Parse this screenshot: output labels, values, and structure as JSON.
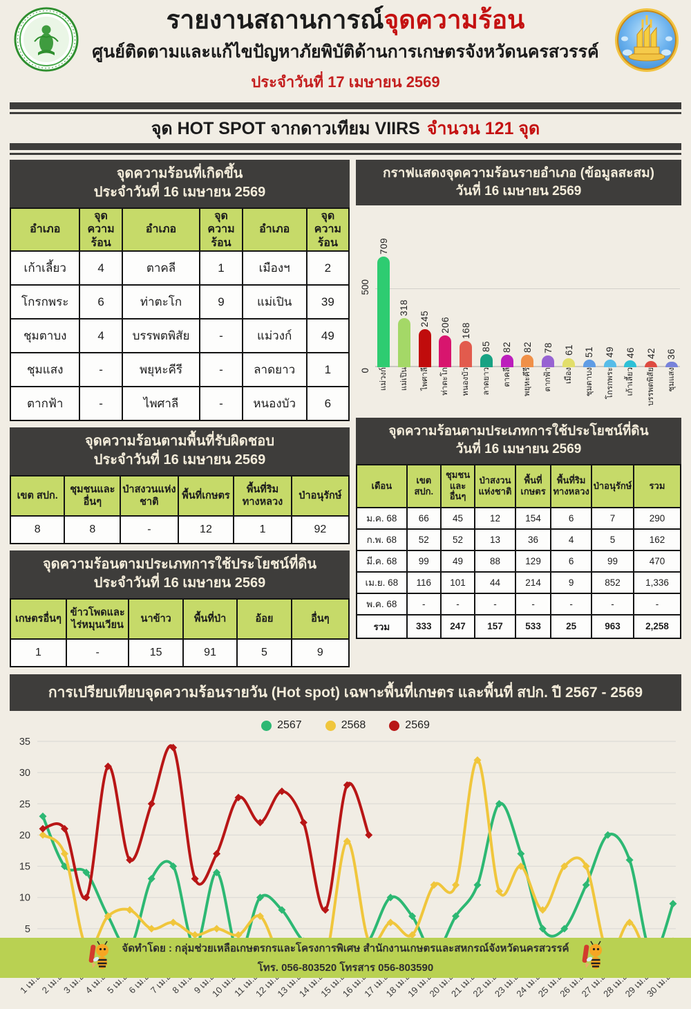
{
  "header": {
    "title_prefix": "รายงานสถานการณ์",
    "title_highlight": "จุดความร้อน",
    "subtitle": "ศูนย์ติดตามและแก้ไขปัญหาภัยพิบัติด้านการเกษตรจังหวัดนครสวรรค์",
    "date_line": "ประจำวันที่ 17 เมษายน 2569",
    "left_logo": "ministry-of-agriculture-and-cooperatives-seal",
    "right_logo": "nakhon-sawan-province-seal"
  },
  "hotspot_banner": {
    "text_black": "จุด HOT SPOT จากดาวเทียม VIIRS",
    "text_red": "จำนวน 121 จุด"
  },
  "daily_table": {
    "title": "จุดความร้อนที่เกิดขึ้น",
    "subtitle": "ประจำวันที่ 16 เมษายน 2569",
    "headers": [
      "อำเภอ",
      "จุดความ\nร้อน",
      "อำเภอ",
      "จุดความ\nร้อน",
      "อำเภอ",
      "จุดความ\nร้อน"
    ],
    "rows": [
      [
        "เก้าเลี้ยว",
        "4",
        "ตาคลี",
        "1",
        "เมืองฯ",
        "2"
      ],
      [
        "โกรกพระ",
        "6",
        "ท่าตะโก",
        "9",
        "แม่เปิน",
        "39"
      ],
      [
        "ชุมตาบง",
        "4",
        "บรรพตพิสัย",
        "-",
        "แม่วงก์",
        "49"
      ],
      [
        "ชุมแสง",
        "-",
        "พยุหะคีรี",
        "-",
        "ลาดยาว",
        "1"
      ],
      [
        "ตากฟ้า",
        "-",
        "ไพศาลี",
        "-",
        "หนองบัว",
        "6"
      ]
    ]
  },
  "responsible_area_table": {
    "title": "จุดความร้อนตามพื้นที่รับผิดชอบ",
    "subtitle": "ประจำวันที่ 16 เมษายน 2569",
    "headers": [
      "เขต สปก.",
      "ชุมชนและ\nอื่นๆ",
      "ป่าสงวนแห่ง\nชาติ",
      "พื้นที่เกษตร",
      "พื้นที่ริม\nทางหลวง",
      "ป่าอนุรักษ์"
    ],
    "values": [
      "8",
      "8",
      "-",
      "12",
      "1",
      "92"
    ]
  },
  "landuse_table": {
    "title": "จุดความร้อนตามประเภทการใช้ประโยชน์ที่ดิน",
    "subtitle": "ประจำวันที่ 16 เมษายน 2569",
    "headers": [
      "เกษตรอื่นๆ",
      "ข้าวโพดและ\nไร่หมุนเวียน",
      "นาข้าว",
      "พื้นที่ป่า",
      "อ้อย",
      "อื่นๆ"
    ],
    "values": [
      "1",
      "-",
      "15",
      "91",
      "5",
      "9"
    ]
  },
  "monthly_table": {
    "title": "จุดความร้อนตามประเภทการใช้ประโยชน์ที่ดิน",
    "subtitle": "วันที่ 16 เมษายน 2569",
    "headers": [
      "เดือน",
      "เขต\nสปก.",
      "ชุมชน\nและ\nอื่นๆ",
      "ป่าสงวน\nแห่งชาติ",
      "พื้นที่\nเกษตร",
      "พื้นที่ริม\nทางหลวง",
      "ป่าอนุรักษ์",
      "รวม"
    ],
    "rows": [
      [
        "ม.ค. 68",
        "66",
        "45",
        "12",
        "154",
        "6",
        "7",
        "290"
      ],
      [
        "ก.พ. 68",
        "52",
        "52",
        "13",
        "36",
        "4",
        "5",
        "162"
      ],
      [
        "มี.ค. 68",
        "99",
        "49",
        "88",
        "129",
        "6",
        "99",
        "470"
      ],
      [
        "เม.ย. 68",
        "116",
        "101",
        "44",
        "214",
        "9",
        "852",
        "1,336"
      ],
      [
        "พ.ค. 68",
        "-",
        "-",
        "-",
        "-",
        "-",
        "-",
        "-"
      ]
    ],
    "total_row": [
      "รวม",
      "333",
      "247",
      "157",
      "533",
      "25",
      "963",
      "2,258"
    ]
  },
  "comparison": {
    "banner": "การเปรียบเทียบจุดความร้อนรายวัน (Hot spot)  เฉพาะพื้นที่เกษตร และพื้นที่ สปก. ปี 2567 - 2569"
  },
  "footer": {
    "line1": "จัดทำโดย : กลุ่มช่วยเหลือเกษตรกรและโครงการพิเศษ สำนักงานเกษตรและสหกรณ์จังหวัดนครสวรรค์",
    "line2": "โทร. 056-803520 โทรสาร 056-803590",
    "mascot": "bee-with-pencil-mascot"
  },
  "colors": {
    "dark_band": "#3e3d3b",
    "header_green": "#c6da69",
    "footer_green": "#b9d152",
    "accent_red": "#c41111",
    "page_bg": "#f1ede4"
  },
  "chart_data": [
    {
      "type": "bar",
      "title": "กราฟแสดงจุดความร้อนรายอำเภอ (ข้อมูลสะสม)",
      "subtitle": "วันที่ 16 เมษายน 2569",
      "categories": [
        "แม่วงก์",
        "แม่เปิน",
        "ไพศาลี",
        "ท่าตะโก",
        "หนองบัว",
        "ลาดยาว",
        "ตาคลี",
        "พยุหะคีรี",
        "ตากฟ้า",
        "เมือง",
        "ชุมตาบง",
        "โกรกพระ",
        "เก้าเลี้ยว",
        "บรรพตพิสัย",
        "ชุมแสง"
      ],
      "values": [
        709,
        318,
        245,
        206,
        168,
        85,
        82,
        82,
        78,
        61,
        51,
        49,
        46,
        42,
        36
      ],
      "colors": [
        "#2ecc71",
        "#a4d867",
        "#c00c0c",
        "#d8156e",
        "#e25b4d",
        "#18a283",
        "#bc1ebc",
        "#f09048",
        "#9763d2",
        "#e2de6a",
        "#5f9ce4",
        "#57bce8",
        "#2dc0d6",
        "#dd4b41",
        "#7782da"
      ],
      "yticks": [
        0,
        500
      ],
      "ylim": [
        0,
        750
      ],
      "grid": true,
      "value_labels": "rotated-90"
    },
    {
      "type": "line",
      "title": "การเปรียบเทียบจุดความร้อนรายวัน (Hot spot)  เฉพาะพื้นที่เกษตร และพื้นที่ สปก. ปี 2567 - 2569",
      "x": [
        "1 เม.ย.",
        "2 เม.ย.",
        "3 เม.ย.",
        "4 เม.ย.",
        "5 เม.ย.",
        "6 เม.ย.",
        "7 เม.ย.",
        "8 เม.ย.",
        "9 เม.ย.",
        "10 เม.ย.",
        "11 เม.ย.",
        "12 เม.ย.",
        "13 เม.ย.",
        "14 เม.ย.",
        "15 เม.ย.",
        "16 เม.ย.",
        "17 เม.ย.",
        "18 เม.ย.",
        "19 เม.ย.",
        "20 เม.ย.",
        "21 เม.ย.",
        "22 เม.ย.",
        "23 เม.ย.",
        "24 เม.ย.",
        "25 เม.ย.",
        "26 เม.ย.",
        "27 เม.ย.",
        "28 เม.ย.",
        "29 เม.ย.",
        "30 เม.ย."
      ],
      "series": [
        {
          "name": "2567",
          "color": "#2db873",
          "values": [
            23,
            15,
            14,
            7,
            2,
            13,
            15,
            2,
            14,
            1,
            10,
            8,
            3,
            2,
            0,
            3,
            10,
            7,
            1,
            7,
            12,
            25,
            17,
            5,
            5,
            12,
            20,
            16,
            1,
            9
          ]
        },
        {
          "name": "2568",
          "color": "#f0c63c",
          "values": [
            20,
            17,
            2,
            7,
            8,
            5,
            6,
            4,
            5,
            4,
            7,
            0,
            0,
            0,
            19,
            3,
            6,
            4,
            12,
            12,
            32,
            11,
            15,
            8,
            15,
            15,
            1,
            6,
            0,
            3
          ]
        },
        {
          "name": "2569",
          "color": "#b81616",
          "values": [
            21,
            21,
            10,
            31,
            16,
            25,
            34,
            13,
            17,
            26,
            22,
            27,
            22,
            8,
            28,
            20
          ]
        }
      ],
      "ylim": [
        0,
        35
      ],
      "ytick_step": 5,
      "grid": true,
      "legend_position": "top",
      "marker": "diamond"
    }
  ]
}
